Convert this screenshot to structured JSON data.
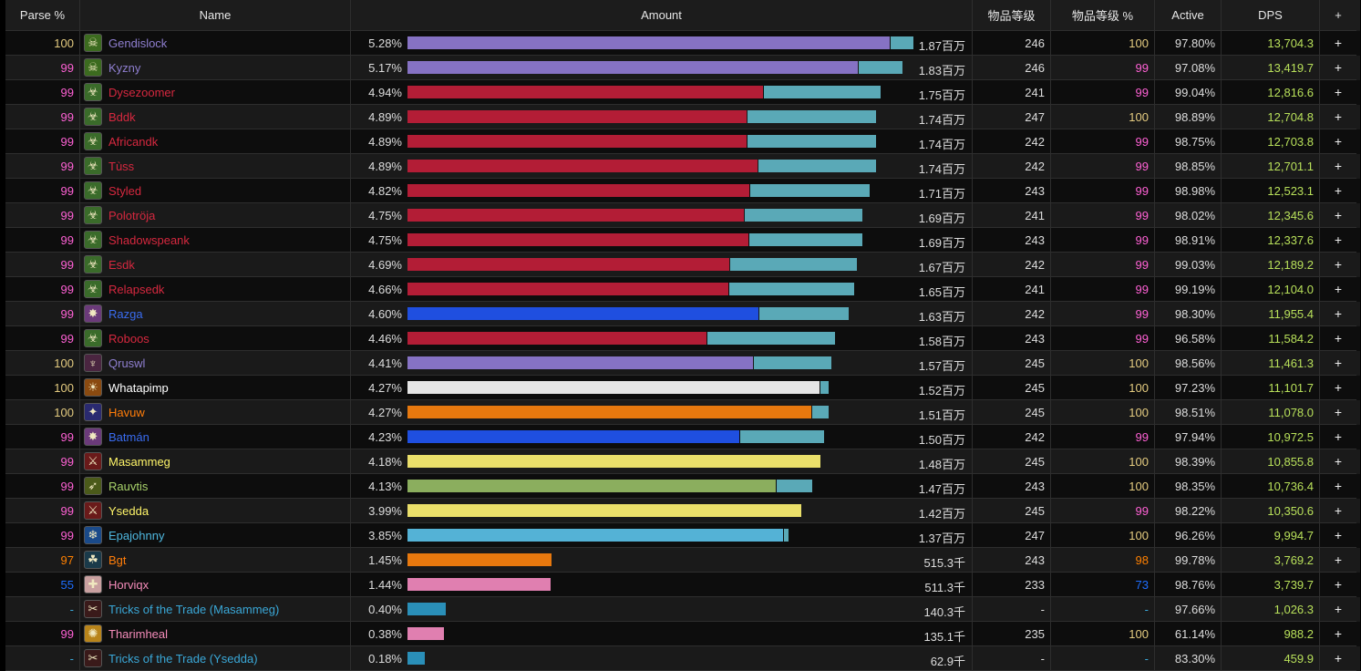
{
  "headers": {
    "parse": "Parse %",
    "name": "Name",
    "amount": "Amount",
    "ilvl": "物品等级",
    "ilvl_pct": "物品等级 %",
    "active": "Active",
    "dps": "DPS",
    "plus": "+"
  },
  "colors": {
    "legendary": "#e5cc80",
    "epic": "#ff61d5",
    "rare": "#1e6eff",
    "uncommon": "#ff8000",
    "pet": "#3aa8d8",
    "muted": "#888888",
    "remainder": "#5aa9b7"
  },
  "rows": [
    {
      "parse": "100",
      "parse_color": "#e5cc80",
      "name": "Gendislock",
      "name_color": "#8f7fd0",
      "icon": "warlock-icon",
      "icon_bg": "#3c6b1f",
      "icon_glyph": "☠",
      "pct": "5.28%",
      "amount": "1.87百万",
      "ilvl": "246",
      "ilvl_pct": "100",
      "ilvl_pct_color": "#e5cc80",
      "active": "97.80%",
      "dps": "13,704.3",
      "plus": "+",
      "main": 0.953,
      "rest": 0.047,
      "total": 1.0,
      "bar_color": "#8672c4"
    },
    {
      "parse": "99",
      "parse_color": "#ff61d5",
      "name": "Kyzny",
      "name_color": "#8f7fd0",
      "icon": "warlock-icon",
      "icon_bg": "#3c6b1f",
      "icon_glyph": "☠",
      "pct": "5.17%",
      "amount": "1.83百万",
      "ilvl": "246",
      "ilvl_pct": "99",
      "ilvl_pct_color": "#ff61d5",
      "active": "97.08%",
      "dps": "13,419.7",
      "plus": "+",
      "main": 0.91,
      "rest": 0.09,
      "total": 0.979,
      "bar_color": "#8672c4"
    },
    {
      "parse": "99",
      "parse_color": "#ff61d5",
      "name": "Dysezoomer",
      "name_color": "#d6283f",
      "icon": "unholy-icon",
      "icon_bg": "#3a6b2a",
      "icon_glyph": "☣",
      "pct": "4.94%",
      "amount": "1.75百万",
      "ilvl": "241",
      "ilvl_pct": "99",
      "ilvl_pct_color": "#ff61d5",
      "active": "99.04%",
      "dps": "12,816.6",
      "plus": "+",
      "main": 0.75,
      "rest": 0.25,
      "total": 0.936,
      "bar_color": "#b31d36"
    },
    {
      "parse": "99",
      "parse_color": "#ff61d5",
      "name": "Bddk",
      "name_color": "#d6283f",
      "icon": "unholy-icon",
      "icon_bg": "#3a6b2a",
      "icon_glyph": "☣",
      "pct": "4.89%",
      "amount": "1.74百万",
      "ilvl": "247",
      "ilvl_pct": "100",
      "ilvl_pct_color": "#e5cc80",
      "active": "98.89%",
      "dps": "12,704.8",
      "plus": "+",
      "main": 0.724,
      "rest": 0.276,
      "total": 0.927,
      "bar_color": "#b31d36"
    },
    {
      "parse": "99",
      "parse_color": "#ff61d5",
      "name": "Africandk",
      "name_color": "#d6283f",
      "icon": "unholy-icon",
      "icon_bg": "#3a6b2a",
      "icon_glyph": "☣",
      "pct": "4.89%",
      "amount": "1.74百万",
      "ilvl": "242",
      "ilvl_pct": "99",
      "ilvl_pct_color": "#ff61d5",
      "active": "98.75%",
      "dps": "12,703.8",
      "plus": "+",
      "main": 0.724,
      "rest": 0.276,
      "total": 0.927,
      "bar_color": "#b31d36"
    },
    {
      "parse": "99",
      "parse_color": "#ff61d5",
      "name": "Tùss",
      "name_color": "#d6283f",
      "icon": "unholy-icon",
      "icon_bg": "#3a6b2a",
      "icon_glyph": "☣",
      "pct": "4.89%",
      "amount": "1.74百万",
      "ilvl": "242",
      "ilvl_pct": "99",
      "ilvl_pct_color": "#ff61d5",
      "active": "98.85%",
      "dps": "12,701.1",
      "plus": "+",
      "main": 0.746,
      "rest": 0.254,
      "total": 0.927,
      "bar_color": "#b31d36"
    },
    {
      "parse": "99",
      "parse_color": "#ff61d5",
      "name": "Styled",
      "name_color": "#d6283f",
      "icon": "unholy-icon",
      "icon_bg": "#3a6b2a",
      "icon_glyph": "☣",
      "pct": "4.82%",
      "amount": "1.71百万",
      "ilvl": "243",
      "ilvl_pct": "99",
      "ilvl_pct_color": "#ff61d5",
      "active": "98.98%",
      "dps": "12,523.1",
      "plus": "+",
      "main": 0.739,
      "rest": 0.261,
      "total": 0.914,
      "bar_color": "#b31d36"
    },
    {
      "parse": "99",
      "parse_color": "#ff61d5",
      "name": "Polotröja",
      "name_color": "#d6283f",
      "icon": "unholy-icon",
      "icon_bg": "#3a6b2a",
      "icon_glyph": "☣",
      "pct": "4.75%",
      "amount": "1.69百万",
      "ilvl": "241",
      "ilvl_pct": "99",
      "ilvl_pct_color": "#ff61d5",
      "active": "98.02%",
      "dps": "12,345.6",
      "plus": "+",
      "main": 0.738,
      "rest": 0.262,
      "total": 0.9,
      "bar_color": "#b31d36"
    },
    {
      "parse": "99",
      "parse_color": "#ff61d5",
      "name": "Shadowspeank",
      "name_color": "#d6283f",
      "icon": "unholy-icon",
      "icon_bg": "#3a6b2a",
      "icon_glyph": "☣",
      "pct": "4.75%",
      "amount": "1.69百万",
      "ilvl": "243",
      "ilvl_pct": "99",
      "ilvl_pct_color": "#ff61d5",
      "active": "98.91%",
      "dps": "12,337.6",
      "plus": "+",
      "main": 0.75,
      "rest": 0.25,
      "total": 0.899,
      "bar_color": "#b31d36"
    },
    {
      "parse": "99",
      "parse_color": "#ff61d5",
      "name": "Esdk",
      "name_color": "#d6283f",
      "icon": "unholy-icon",
      "icon_bg": "#3a6b2a",
      "icon_glyph": "☣",
      "pct": "4.69%",
      "amount": "1.67百万",
      "ilvl": "242",
      "ilvl_pct": "99",
      "ilvl_pct_color": "#ff61d5",
      "active": "99.03%",
      "dps": "12,189.2",
      "plus": "+",
      "main": 0.717,
      "rest": 0.283,
      "total": 0.888,
      "bar_color": "#b31d36"
    },
    {
      "parse": "99",
      "parse_color": "#ff61d5",
      "name": "Relapsedk",
      "name_color": "#d6283f",
      "icon": "unholy-icon",
      "icon_bg": "#3a6b2a",
      "icon_glyph": "☣",
      "pct": "4.66%",
      "amount": "1.65百万",
      "ilvl": "241",
      "ilvl_pct": "99",
      "ilvl_pct_color": "#ff61d5",
      "active": "99.19%",
      "dps": "12,104.0",
      "plus": "+",
      "main": 0.718,
      "rest": 0.282,
      "total": 0.883,
      "bar_color": "#b31d36"
    },
    {
      "parse": "99",
      "parse_color": "#ff61d5",
      "name": "Razga",
      "name_color": "#3a6cf0",
      "icon": "shaman-icon",
      "icon_bg": "#6b3a7a",
      "icon_glyph": "✸",
      "pct": "4.60%",
      "amount": "1.63百万",
      "ilvl": "242",
      "ilvl_pct": "99",
      "ilvl_pct_color": "#ff61d5",
      "active": "98.30%",
      "dps": "11,955.4",
      "plus": "+",
      "main": 0.795,
      "rest": 0.205,
      "total": 0.872,
      "bar_color": "#1f4fe0"
    },
    {
      "parse": "99",
      "parse_color": "#ff61d5",
      "name": "Roboos",
      "name_color": "#d6283f",
      "icon": "unholy-icon",
      "icon_bg": "#3a6b2a",
      "icon_glyph": "☣",
      "pct": "4.46%",
      "amount": "1.58百万",
      "ilvl": "243",
      "ilvl_pct": "99",
      "ilvl_pct_color": "#ff61d5",
      "active": "96.58%",
      "dps": "11,584.2",
      "plus": "+",
      "main": 0.7,
      "rest": 0.3,
      "total": 0.845,
      "bar_color": "#b31d36"
    },
    {
      "parse": "100",
      "parse_color": "#e5cc80",
      "name": "Qruswl",
      "name_color": "#8f7fd0",
      "icon": "demon-icon",
      "icon_bg": "#4a2540",
      "icon_glyph": "♆",
      "pct": "4.41%",
      "amount": "1.57百万",
      "ilvl": "245",
      "ilvl_pct": "100",
      "ilvl_pct_color": "#e5cc80",
      "active": "98.56%",
      "dps": "11,461.3",
      "plus": "+",
      "main": 0.814,
      "rest": 0.186,
      "total": 0.838,
      "bar_color": "#8672c4"
    },
    {
      "parse": "100",
      "parse_color": "#e5cc80",
      "name": "Whatapimp",
      "name_color": "#ffffff",
      "icon": "priest-icon",
      "icon_bg": "#8a4a10",
      "icon_glyph": "☀",
      "pct": "4.27%",
      "amount": "1.52百万",
      "ilvl": "245",
      "ilvl_pct": "100",
      "ilvl_pct_color": "#e5cc80",
      "active": "97.23%",
      "dps": "11,101.7",
      "plus": "+",
      "main": 0.978,
      "rest": 0.022,
      "total": 0.833,
      "bar_color": "#e6e6e6"
    },
    {
      "parse": "100",
      "parse_color": "#e5cc80",
      "name": "Havuw",
      "name_color": "#ff7d0a",
      "icon": "balance-icon",
      "icon_bg": "#2a2a70",
      "icon_glyph": "✦",
      "pct": "4.27%",
      "amount": "1.51百万",
      "ilvl": "245",
      "ilvl_pct": "100",
      "ilvl_pct_color": "#e5cc80",
      "active": "98.51%",
      "dps": "11,078.0",
      "plus": "+",
      "main": 0.958,
      "rest": 0.042,
      "total": 0.833,
      "bar_color": "#e7780e"
    },
    {
      "parse": "99",
      "parse_color": "#ff61d5",
      "name": "Batmán",
      "name_color": "#3a6cf0",
      "icon": "shaman-icon",
      "icon_bg": "#6b3a7a",
      "icon_glyph": "✸",
      "pct": "4.23%",
      "amount": "1.50百万",
      "ilvl": "242",
      "ilvl_pct": "99",
      "ilvl_pct_color": "#ff61d5",
      "active": "97.94%",
      "dps": "10,972.5",
      "plus": "+",
      "main": 0.797,
      "rest": 0.203,
      "total": 0.824,
      "bar_color": "#1f4fe0"
    },
    {
      "parse": "99",
      "parse_color": "#ff61d5",
      "name": "Masammeg",
      "name_color": "#fff569",
      "icon": "rogue-icon",
      "icon_bg": "#6a1a1a",
      "icon_glyph": "⚔",
      "pct": "4.18%",
      "amount": "1.48百万",
      "ilvl": "245",
      "ilvl_pct": "100",
      "ilvl_pct_color": "#e5cc80",
      "active": "98.39%",
      "dps": "10,855.8",
      "plus": "+",
      "main": 1.0,
      "rest": 0.0,
      "total": 0.816,
      "bar_color": "#eadf6a"
    },
    {
      "parse": "99",
      "parse_color": "#ff61d5",
      "name": "Rauvtis",
      "name_color": "#a8d26b",
      "icon": "hunter-icon",
      "icon_bg": "#4b5a1a",
      "icon_glyph": "➶",
      "pct": "4.13%",
      "amount": "1.47百万",
      "ilvl": "243",
      "ilvl_pct": "100",
      "ilvl_pct_color": "#e5cc80",
      "active": "98.35%",
      "dps": "10,736.4",
      "plus": "+",
      "main": 0.91,
      "rest": 0.09,
      "total": 0.8,
      "bar_color": "#8bae5e"
    },
    {
      "parse": "99",
      "parse_color": "#ff61d5",
      "name": "Ysedda",
      "name_color": "#fff569",
      "icon": "rogue-icon",
      "icon_bg": "#6a1a1a",
      "icon_glyph": "⚔",
      "pct": "3.99%",
      "amount": "1.42百万",
      "ilvl": "245",
      "ilvl_pct": "99",
      "ilvl_pct_color": "#ff61d5",
      "active": "98.22%",
      "dps": "10,350.6",
      "plus": "+",
      "main": 1.0,
      "rest": 0.0,
      "total": 0.779,
      "bar_color": "#eadf6a"
    },
    {
      "parse": "99",
      "parse_color": "#ff61d5",
      "name": "Epajohnny",
      "name_color": "#4fb8e0",
      "icon": "frost-mage-icon",
      "icon_bg": "#1a4a8a",
      "icon_glyph": "❄",
      "pct": "3.85%",
      "amount": "1.37百万",
      "ilvl": "247",
      "ilvl_pct": "100",
      "ilvl_pct_color": "#e5cc80",
      "active": "96.26%",
      "dps": "9,994.7",
      "plus": "+",
      "main": 0.985,
      "rest": 0.015,
      "total": 0.753,
      "bar_color": "#54b2d6"
    },
    {
      "parse": "97",
      "parse_color": "#ff8000",
      "name": "Bgt",
      "name_color": "#ff7d0a",
      "icon": "guardian-icon",
      "icon_bg": "#1a3a4a",
      "icon_glyph": "☘",
      "pct": "1.45%",
      "amount": "515.3千",
      "ilvl": "243",
      "ilvl_pct": "98",
      "ilvl_pct_color": "#ff8000",
      "active": "99.78%",
      "dps": "3,769.2",
      "plus": "+",
      "main": 1.0,
      "rest": 0.0,
      "total": 0.285,
      "bar_color": "#e7780e"
    },
    {
      "parse": "55",
      "parse_color": "#1e6eff",
      "name": "Horviqx",
      "name_color": "#f58cba",
      "icon": "paladin-icon",
      "icon_bg": "#c9a0a0",
      "icon_glyph": "✚",
      "pct": "1.44%",
      "amount": "511.3千",
      "ilvl": "233",
      "ilvl_pct": "73",
      "ilvl_pct_color": "#1e6eff",
      "active": "98.76%",
      "dps": "3,739.7",
      "plus": "+",
      "main": 1.0,
      "rest": 0.0,
      "total": 0.283,
      "bar_color": "#e07fb0"
    },
    {
      "parse": "-",
      "parse_color": "#3aa8d8",
      "name": "Tricks of the Trade (Masammeg)",
      "name_color": "#3aa8d8",
      "icon": "tricks-icon",
      "icon_bg": "#3a1a1a",
      "icon_glyph": "✂",
      "pct": "0.40%",
      "amount": "140.3千",
      "ilvl": "-",
      "ilvl_pct": "-",
      "ilvl_pct_color": "#3aa8d8",
      "active": "97.66%",
      "dps": "1,026.3",
      "plus": "+",
      "main": 1.0,
      "rest": 0.0,
      "total": 0.076,
      "bar_color": "#2a8fb8"
    },
    {
      "parse": "99",
      "parse_color": "#ff61d5",
      "name": "Tharimheal",
      "name_color": "#f58cba",
      "icon": "holy-icon",
      "icon_bg": "#b8841a",
      "icon_glyph": "✺",
      "pct": "0.38%",
      "amount": "135.1千",
      "ilvl": "235",
      "ilvl_pct": "100",
      "ilvl_pct_color": "#e5cc80",
      "active": "61.14%",
      "dps": "988.2",
      "plus": "+",
      "main": 1.0,
      "rest": 0.0,
      "total": 0.072,
      "bar_color": "#e07fb0"
    },
    {
      "parse": "-",
      "parse_color": "#3aa8d8",
      "name": "Tricks of the Trade (Ysedda)",
      "name_color": "#3aa8d8",
      "icon": "tricks-icon",
      "icon_bg": "#3a1a1a",
      "icon_glyph": "✂",
      "pct": "0.18%",
      "amount": "62.9千",
      "ilvl": "-",
      "ilvl_pct": "-",
      "ilvl_pct_color": "#3aa8d8",
      "active": "83.30%",
      "dps": "459.9",
      "plus": "+",
      "main": 1.0,
      "rest": 0.0,
      "total": 0.034,
      "bar_color": "#2a8fb8"
    }
  ]
}
